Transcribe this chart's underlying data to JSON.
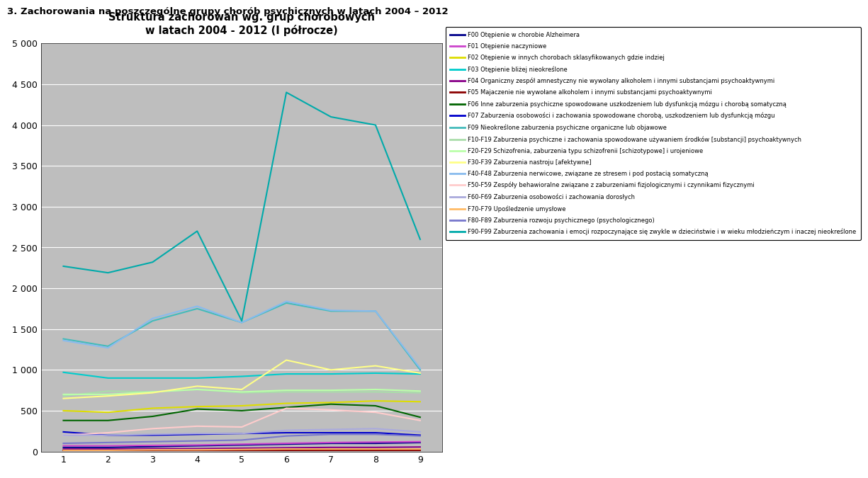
{
  "title_main": "3. Zachorowania na poszczególne grupy chorób psychicznych w latach 2004 – 2012",
  "title_chart": "Struktura zachorowań wg. grup chorobowych\nw latach 2004 - 2012 (I półrocze)",
  "x_labels": [
    "1",
    "2",
    "3",
    "4",
    "5",
    "6",
    "7",
    "8",
    "9"
  ],
  "x_values": [
    1,
    2,
    3,
    4,
    5,
    6,
    7,
    8,
    9
  ],
  "ylim": [
    0,
    5000
  ],
  "yticks": [
    0,
    500,
    1000,
    1500,
    2000,
    2500,
    3000,
    3500,
    4000,
    4500,
    5000
  ],
  "series": [
    {
      "label": "F00 Otępienie w chorobie Alzheimera",
      "color": "#00008B",
      "values": [
        50,
        50,
        60,
        70,
        80,
        90,
        100,
        100,
        110
      ]
    },
    {
      "label": "F01 Otępienie naczyniowe",
      "color": "#CC44CC",
      "values": [
        70,
        70,
        75,
        80,
        90,
        100,
        110,
        115,
        120
      ]
    },
    {
      "label": "F02 Otępienie w innych chorobach sklasyfikowanych gdzie indziej",
      "color": "#DDDD00",
      "values": [
        500,
        480,
        530,
        550,
        560,
        590,
        600,
        620,
        610
      ]
    },
    {
      "label": "F03 Otępienie bliżej nieokreślone",
      "color": "#00CCCC",
      "values": [
        970,
        900,
        900,
        900,
        920,
        950,
        950,
        960,
        950
      ]
    },
    {
      "label": "F04 Organiczny zespół amnestyczny nie wywołany alkoholem i innymi substancjami psychoaktywnymi",
      "color": "#880088",
      "values": [
        30,
        30,
        35,
        35,
        40,
        45,
        50,
        50,
        55
      ]
    },
    {
      "label": "F05 Majaczenie nie wywołane alkoholem i innymi substancjami psychoaktywnymi",
      "color": "#8B0000",
      "values": [
        10,
        10,
        10,
        10,
        10,
        10,
        10,
        10,
        10
      ]
    },
    {
      "label": "F06 Inne zaburzenia psychiczne spowodowane uszkodzeniem lub dysfunkcją mózgu i chorobą somatyczną",
      "color": "#006400",
      "values": [
        380,
        380,
        430,
        520,
        500,
        540,
        580,
        560,
        420
      ]
    },
    {
      "label": "F07 Zaburzenia osobowości i zachowania spowodowane chorobą, uszkodzeniem lub dysfunkcją mózgu",
      "color": "#0000CC",
      "values": [
        240,
        200,
        200,
        210,
        220,
        230,
        230,
        230,
        200
      ]
    },
    {
      "label": "F09 Nieokreślone zaburzenia psychiczne organiczne lub objawowe",
      "color": "#44BBBB",
      "values": [
        1380,
        1290,
        1600,
        1750,
        1580,
        1820,
        1720,
        1720,
        1000
      ]
    },
    {
      "label": "F10-F19 Zaburzenia psychiczne i zachowania spowodowane używaniem środków [substancji] psychoaktywnych",
      "color": "#AADDAA",
      "values": [
        680,
        740,
        730,
        760,
        720,
        730,
        730,
        730,
        720
      ]
    },
    {
      "label": "F20-F29 Schizofrenia, zaburzenia typu schizofrenii [schizotypowe] i urojeniowe",
      "color": "#BBFFAA",
      "values": [
        700,
        700,
        730,
        760,
        730,
        750,
        750,
        760,
        740
      ]
    },
    {
      "label": "F30-F39 Zaburzenia nastroju [afektywne]",
      "color": "#FFFF88",
      "values": [
        650,
        680,
        720,
        800,
        760,
        1120,
        1000,
        1050,
        960
      ]
    },
    {
      "label": "F40-F48 Zaburzenia nerwicowe, związane ze stresem i pod postacią somatyczną",
      "color": "#88BBEE",
      "values": [
        1360,
        1270,
        1630,
        1780,
        1580,
        1840,
        1730,
        1720,
        1020
      ]
    },
    {
      "label": "F50-F59 Zespóły behawioralne związane z zaburzeniami fizjologicznymi i czynnikami fizycznymi",
      "color": "#FFCCCC",
      "values": [
        200,
        230,
        280,
        310,
        300,
        530,
        510,
        480,
        380
      ]
    },
    {
      "label": "F60-F69 Zaburzenia osobowości i zachowania dorosłych",
      "color": "#AAAADD",
      "values": [
        200,
        200,
        210,
        220,
        220,
        260,
        270,
        280,
        240
      ]
    },
    {
      "label": "F70-F79 Upośledzenie umysłowe",
      "color": "#FFBB66",
      "values": [
        15,
        15,
        20,
        20,
        25,
        30,
        30,
        30,
        30
      ]
    },
    {
      "label": "F80-F89 Zaburzenia rozwoju psychicznego (psychologicznego)",
      "color": "#7777CC",
      "values": [
        100,
        110,
        120,
        130,
        140,
        190,
        210,
        210,
        190
      ]
    },
    {
      "label": "F90-F99 Zaburzenia zachowania i emocji rozpoczynające się zwykle w dzieciństwie i w wieku młodzieńczym i inaczej nieokreślone",
      "color": "#00AAAA",
      "values": [
        2270,
        2190,
        2320,
        2700,
        1600,
        4400,
        4100,
        4000,
        2600
      ]
    }
  ],
  "plot_bg_color": "#BEBEBE"
}
